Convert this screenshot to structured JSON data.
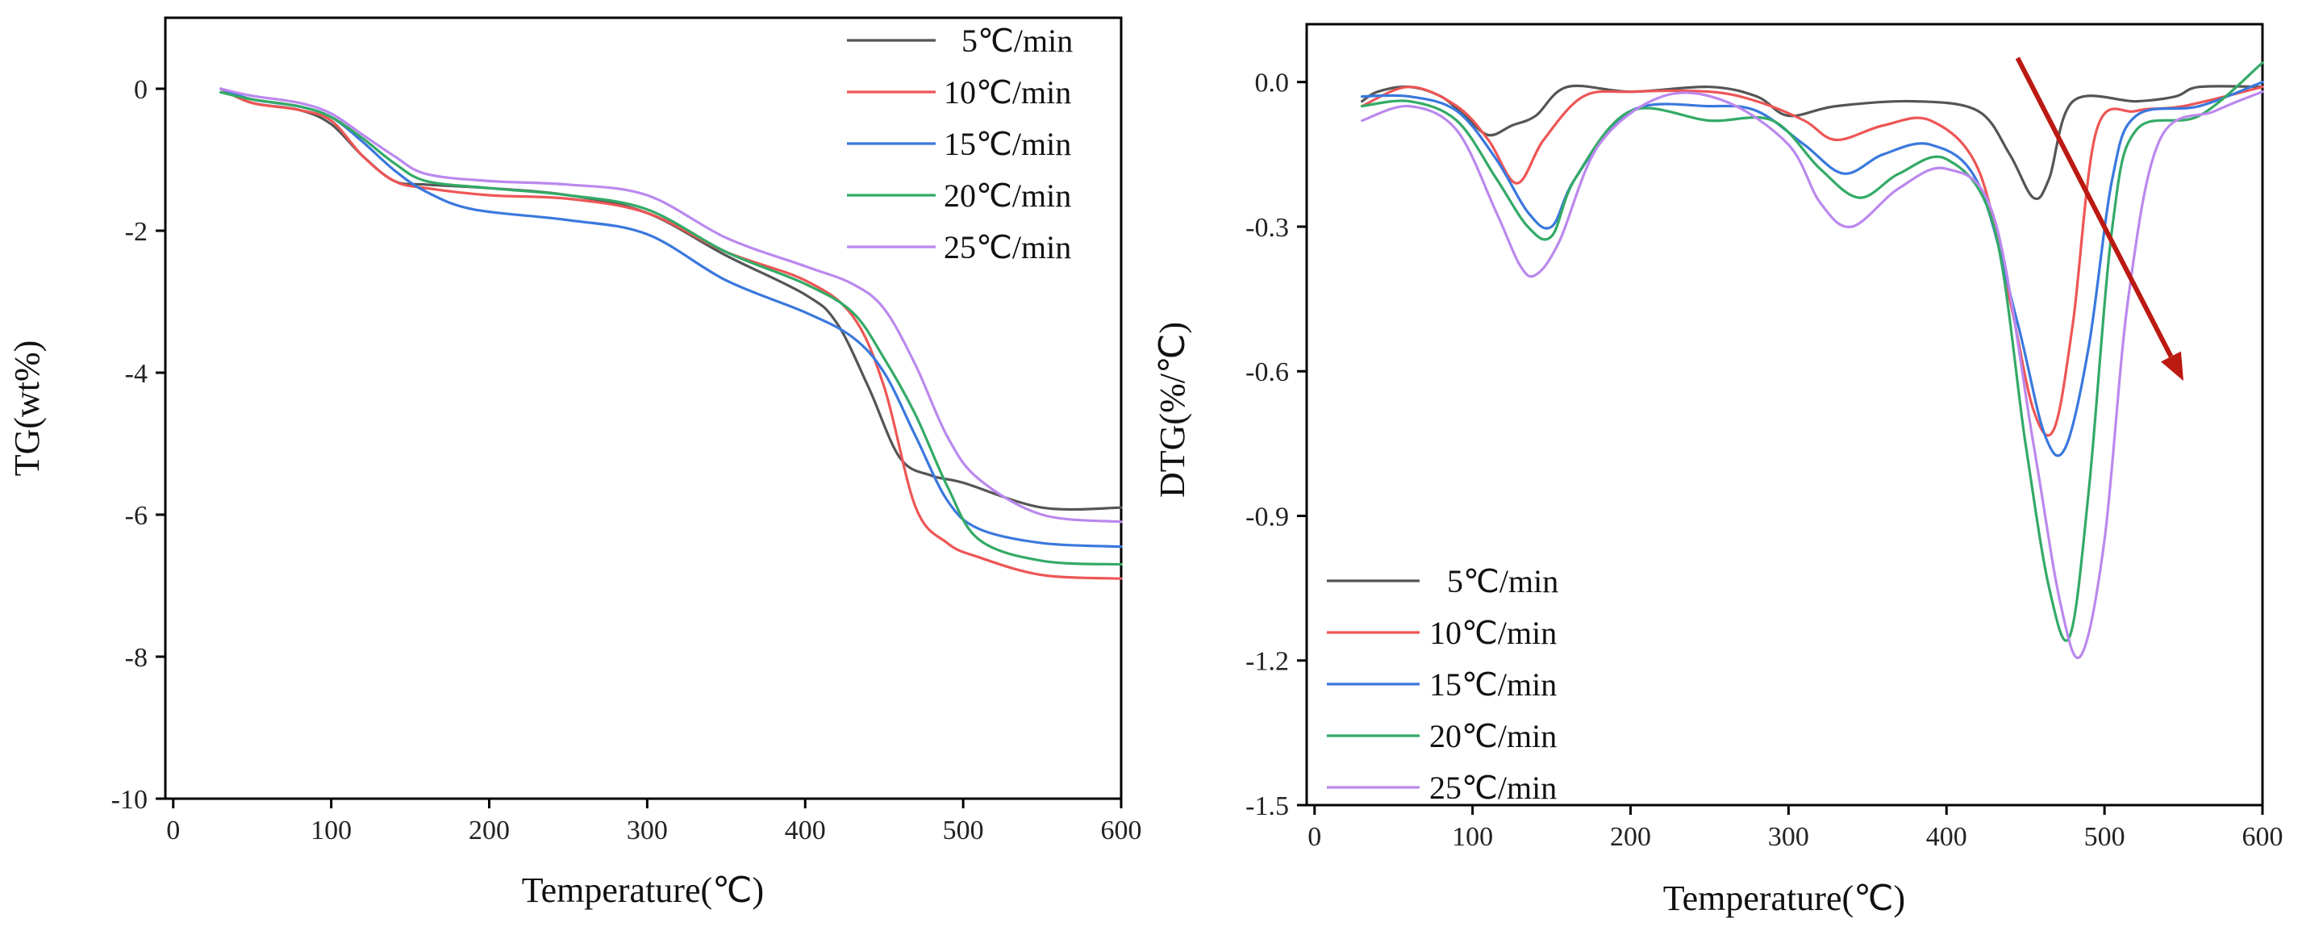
{
  "chart_data": [
    {
      "type": "line",
      "id": "tg",
      "title": "",
      "xlabel": "Temperature(℃)",
      "ylabel": "TG(wt%)",
      "xlim": [
        -5,
        600
      ],
      "ylim": [
        -10,
        1.0
      ],
      "xticks": [
        "0",
        "100",
        "200",
        "300",
        "400",
        "500",
        "600"
      ],
      "xtick_values": [
        0,
        100,
        200,
        300,
        400,
        500,
        600
      ],
      "yticks": [
        "0",
        "-2",
        "-4",
        "-6",
        "-8",
        "-10"
      ],
      "ytick_values": [
        0,
        -2,
        -4,
        -6,
        -8,
        -10
      ],
      "legend_position": "top-right",
      "series": [
        {
          "name": "5℃/min",
          "color": "#555555",
          "x": [
            30,
            50,
            80,
            100,
            120,
            140,
            160,
            200,
            250,
            300,
            350,
            400,
            420,
            440,
            460,
            480,
            500,
            550,
            600
          ],
          "y": [
            0,
            -0.2,
            -0.3,
            -0.5,
            -0.95,
            -1.3,
            -1.35,
            -1.4,
            -1.5,
            -1.75,
            -2.35,
            -2.9,
            -3.3,
            -4.2,
            -5.2,
            -5.45,
            -5.55,
            -5.9,
            -5.9
          ]
        },
        {
          "name": "10℃/min",
          "color": "#ee5555",
          "x": [
            30,
            50,
            80,
            100,
            120,
            140,
            160,
            200,
            250,
            300,
            350,
            400,
            430,
            450,
            470,
            490,
            510,
            550,
            600
          ],
          "y": [
            0,
            -0.2,
            -0.3,
            -0.45,
            -0.95,
            -1.3,
            -1.4,
            -1.5,
            -1.55,
            -1.75,
            -2.3,
            -2.7,
            -3.2,
            -4.2,
            -5.9,
            -6.4,
            -6.6,
            -6.85,
            -6.9
          ]
        },
        {
          "name": "15℃/min",
          "color": "#3a78dd",
          "x": [
            30,
            50,
            80,
            100,
            120,
            140,
            160,
            190,
            250,
            300,
            350,
            400,
            430,
            450,
            470,
            490,
            510,
            550,
            600
          ],
          "y": [
            0,
            -0.15,
            -0.25,
            -0.4,
            -0.75,
            -1.15,
            -1.45,
            -1.7,
            -1.85,
            -2.05,
            -2.7,
            -3.15,
            -3.5,
            -4.0,
            -4.9,
            -5.8,
            -6.2,
            -6.4,
            -6.45
          ]
        },
        {
          "name": "20℃/min",
          "color": "#33aa66",
          "x": [
            30,
            50,
            80,
            100,
            120,
            140,
            160,
            200,
            250,
            300,
            350,
            400,
            430,
            450,
            470,
            490,
            510,
            550,
            600
          ],
          "y": [
            -0.05,
            -0.15,
            -0.25,
            -0.4,
            -0.7,
            -1.05,
            -1.3,
            -1.4,
            -1.5,
            -1.7,
            -2.3,
            -2.75,
            -3.15,
            -3.8,
            -4.6,
            -5.6,
            -6.35,
            -6.65,
            -6.7
          ]
        },
        {
          "name": "25℃/min",
          "color": "#bb88ee",
          "x": [
            30,
            50,
            80,
            100,
            120,
            140,
            160,
            200,
            250,
            300,
            350,
            400,
            430,
            450,
            470,
            490,
            510,
            550,
            600
          ],
          "y": [
            0,
            -0.1,
            -0.2,
            -0.35,
            -0.65,
            -0.95,
            -1.2,
            -1.3,
            -1.35,
            -1.5,
            -2.1,
            -2.5,
            -2.75,
            -3.1,
            -3.9,
            -4.9,
            -5.5,
            -6.0,
            -6.1
          ]
        }
      ]
    },
    {
      "type": "line",
      "id": "dtg",
      "title": "",
      "xlabel": "Temperature(℃)",
      "ylabel": "DTG(%/℃)",
      "xlim": [
        -5,
        600
      ],
      "ylim": [
        -1.5,
        0.12
      ],
      "xticks": [
        "0",
        "100",
        "200",
        "300",
        "400",
        "500",
        "600"
      ],
      "xtick_values": [
        0,
        100,
        200,
        300,
        400,
        500,
        600
      ],
      "yticks": [
        "0.0",
        "-0.3",
        "-0.6",
        "-0.9",
        "-1.2",
        "-1.5"
      ],
      "ytick_values": [
        0,
        -0.3,
        -0.6,
        -0.9,
        -1.2,
        -1.5
      ],
      "legend_position": "bottom-left",
      "annotation": {
        "type": "arrow",
        "color": "#bb1a12",
        "from": [
          445,
          0.05
        ],
        "to": [
          550,
          -0.62
        ]
      },
      "series": [
        {
          "name": "5℃/min",
          "color": "#555555",
          "x": [
            30,
            40,
            60,
            80,
            95,
            110,
            125,
            140,
            160,
            200,
            250,
            280,
            300,
            330,
            380,
            420,
            440,
            455,
            465,
            480,
            520,
            545,
            560,
            600
          ],
          "y": [
            -0.04,
            -0.02,
            -0.01,
            -0.03,
            -0.07,
            -0.11,
            -0.09,
            -0.07,
            -0.01,
            -0.02,
            -0.01,
            -0.03,
            -0.07,
            -0.05,
            -0.04,
            -0.06,
            -0.15,
            -0.24,
            -0.2,
            -0.04,
            -0.04,
            -0.03,
            -0.01,
            -0.01
          ]
        },
        {
          "name": "10℃/min",
          "color": "#ee5555",
          "x": [
            30,
            60,
            90,
            110,
            128,
            145,
            170,
            200,
            250,
            280,
            310,
            330,
            360,
            390,
            420,
            440,
            455,
            468,
            480,
            495,
            520,
            550,
            600
          ],
          "y": [
            -0.05,
            -0.01,
            -0.05,
            -0.12,
            -0.21,
            -0.12,
            -0.03,
            -0.02,
            -0.02,
            -0.04,
            -0.08,
            -0.12,
            -0.09,
            -0.08,
            -0.18,
            -0.45,
            -0.68,
            -0.72,
            -0.5,
            -0.1,
            -0.06,
            -0.05,
            -0.01
          ]
        },
        {
          "name": "15℃/min",
          "color": "#3a78dd",
          "x": [
            30,
            60,
            90,
            115,
            135,
            150,
            165,
            200,
            250,
            280,
            310,
            335,
            360,
            390,
            420,
            445,
            462,
            475,
            490,
            505,
            520,
            560,
            600
          ],
          "y": [
            -0.03,
            -0.03,
            -0.06,
            -0.16,
            -0.27,
            -0.3,
            -0.2,
            -0.06,
            -0.05,
            -0.06,
            -0.13,
            -0.19,
            -0.15,
            -0.13,
            -0.21,
            -0.5,
            -0.73,
            -0.76,
            -0.55,
            -0.2,
            -0.07,
            -0.05,
            0.0
          ]
        },
        {
          "name": "20℃/min",
          "color": "#33aa66",
          "x": [
            30,
            60,
            90,
            115,
            135,
            150,
            165,
            200,
            250,
            290,
            320,
            345,
            370,
            400,
            430,
            450,
            465,
            478,
            490,
            505,
            520,
            560,
            600
          ],
          "y": [
            -0.05,
            -0.04,
            -0.08,
            -0.2,
            -0.3,
            -0.32,
            -0.2,
            -0.06,
            -0.08,
            -0.08,
            -0.18,
            -0.24,
            -0.19,
            -0.16,
            -0.3,
            -0.75,
            -1.05,
            -1.15,
            -0.85,
            -0.3,
            -0.1,
            -0.07,
            0.04
          ]
        },
        {
          "name": "25℃/min",
          "color": "#bb88ee",
          "x": [
            30,
            60,
            90,
            115,
            130,
            140,
            155,
            180,
            220,
            260,
            300,
            320,
            340,
            370,
            400,
            430,
            455,
            472,
            485,
            500,
            515,
            535,
            570,
            600
          ],
          "y": [
            -0.08,
            -0.05,
            -0.1,
            -0.27,
            -0.38,
            -0.4,
            -0.33,
            -0.13,
            -0.03,
            -0.04,
            -0.13,
            -0.25,
            -0.3,
            -0.22,
            -0.18,
            -0.28,
            -0.75,
            -1.08,
            -1.19,
            -0.95,
            -0.45,
            -0.12,
            -0.06,
            -0.02
          ]
        }
      ]
    }
  ]
}
